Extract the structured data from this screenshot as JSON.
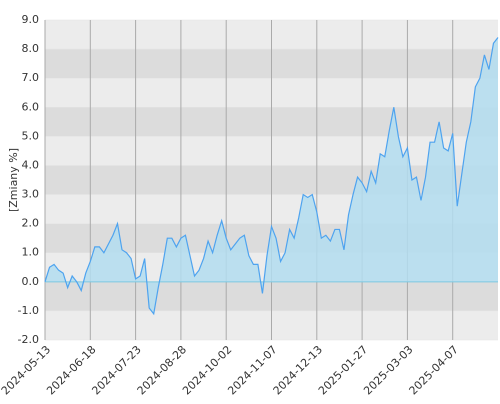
{
  "chart_data": {
    "type": "area",
    "y_label": "[Zmiany %]",
    "categories": [
      "2024-05-13",
      null,
      null,
      null,
      null,
      null,
      null,
      null,
      null,
      null,
      "2024-06-18",
      null,
      null,
      null,
      null,
      null,
      null,
      null,
      null,
      null,
      "2024-07-23",
      null,
      null,
      null,
      null,
      null,
      null,
      null,
      null,
      null,
      "2024-08-28",
      null,
      null,
      null,
      null,
      null,
      null,
      null,
      null,
      null,
      "2024-10-02",
      null,
      null,
      null,
      null,
      null,
      null,
      null,
      null,
      null,
      "2024-11-07",
      null,
      null,
      null,
      null,
      null,
      null,
      null,
      null,
      null,
      "2024-12-13",
      null,
      null,
      null,
      null,
      null,
      null,
      null,
      null,
      null,
      "2025-01-27",
      null,
      null,
      null,
      null,
      null,
      null,
      null,
      null,
      null,
      "2025-03-03",
      null,
      null,
      null,
      null,
      null,
      null,
      null,
      null,
      null,
      "2025-04-07",
      null,
      null,
      null,
      null,
      null,
      null,
      null,
      null,
      null,
      null
    ],
    "values": [
      0.0,
      0.5,
      0.6,
      0.4,
      0.3,
      -0.2,
      0.2,
      0.0,
      -0.3,
      0.3,
      0.7,
      1.2,
      1.2,
      1.0,
      1.3,
      1.6,
      2.0,
      1.1,
      1.0,
      0.8,
      0.1,
      0.2,
      0.8,
      -0.9,
      -1.1,
      -0.2,
      0.6,
      1.5,
      1.5,
      1.2,
      1.5,
      1.6,
      0.9,
      0.2,
      0.4,
      0.8,
      1.4,
      1.0,
      1.6,
      2.1,
      1.5,
      1.1,
      1.3,
      1.5,
      1.6,
      0.9,
      0.6,
      0.6,
      -0.4,
      0.9,
      1.9,
      1.5,
      0.7,
      1.0,
      1.8,
      1.5,
      2.2,
      3.0,
      2.9,
      3.0,
      2.4,
      1.5,
      1.6,
      1.4,
      1.8,
      1.8,
      1.1,
      2.3,
      3.0,
      3.6,
      3.4,
      3.1,
      3.8,
      3.4,
      4.4,
      4.3,
      5.2,
      6.0,
      5.0,
      4.3,
      4.6,
      3.5,
      3.6,
      2.8,
      3.6,
      4.8,
      4.8,
      5.5,
      4.6,
      4.5,
      5.1,
      2.6,
      3.7,
      4.8,
      5.5,
      6.7,
      7.0,
      7.8,
      7.3,
      8.2,
      8.4
    ],
    "color": "#4ea3ef",
    "fill": "#b3ddf0",
    "ylim": [
      -2,
      9
    ],
    "yticks": [
      {
        "value": -2,
        "label": "-2.0"
      },
      {
        "value": -1,
        "label": "-1.0"
      },
      {
        "value": 0,
        "label": "0.0"
      },
      {
        "value": 1,
        "label": "1.0"
      },
      {
        "value": 2,
        "label": "2.0"
      },
      {
        "value": 3,
        "label": "3.0"
      },
      {
        "value": 4,
        "label": "4.0"
      },
      {
        "value": 5,
        "label": "5.0"
      },
      {
        "value": 6,
        "label": "6.0"
      },
      {
        "value": 7,
        "label": "7.0"
      },
      {
        "value": 8,
        "label": "8.0"
      },
      {
        "value": 9,
        "label": "9.0"
      }
    ],
    "grid": true
  }
}
